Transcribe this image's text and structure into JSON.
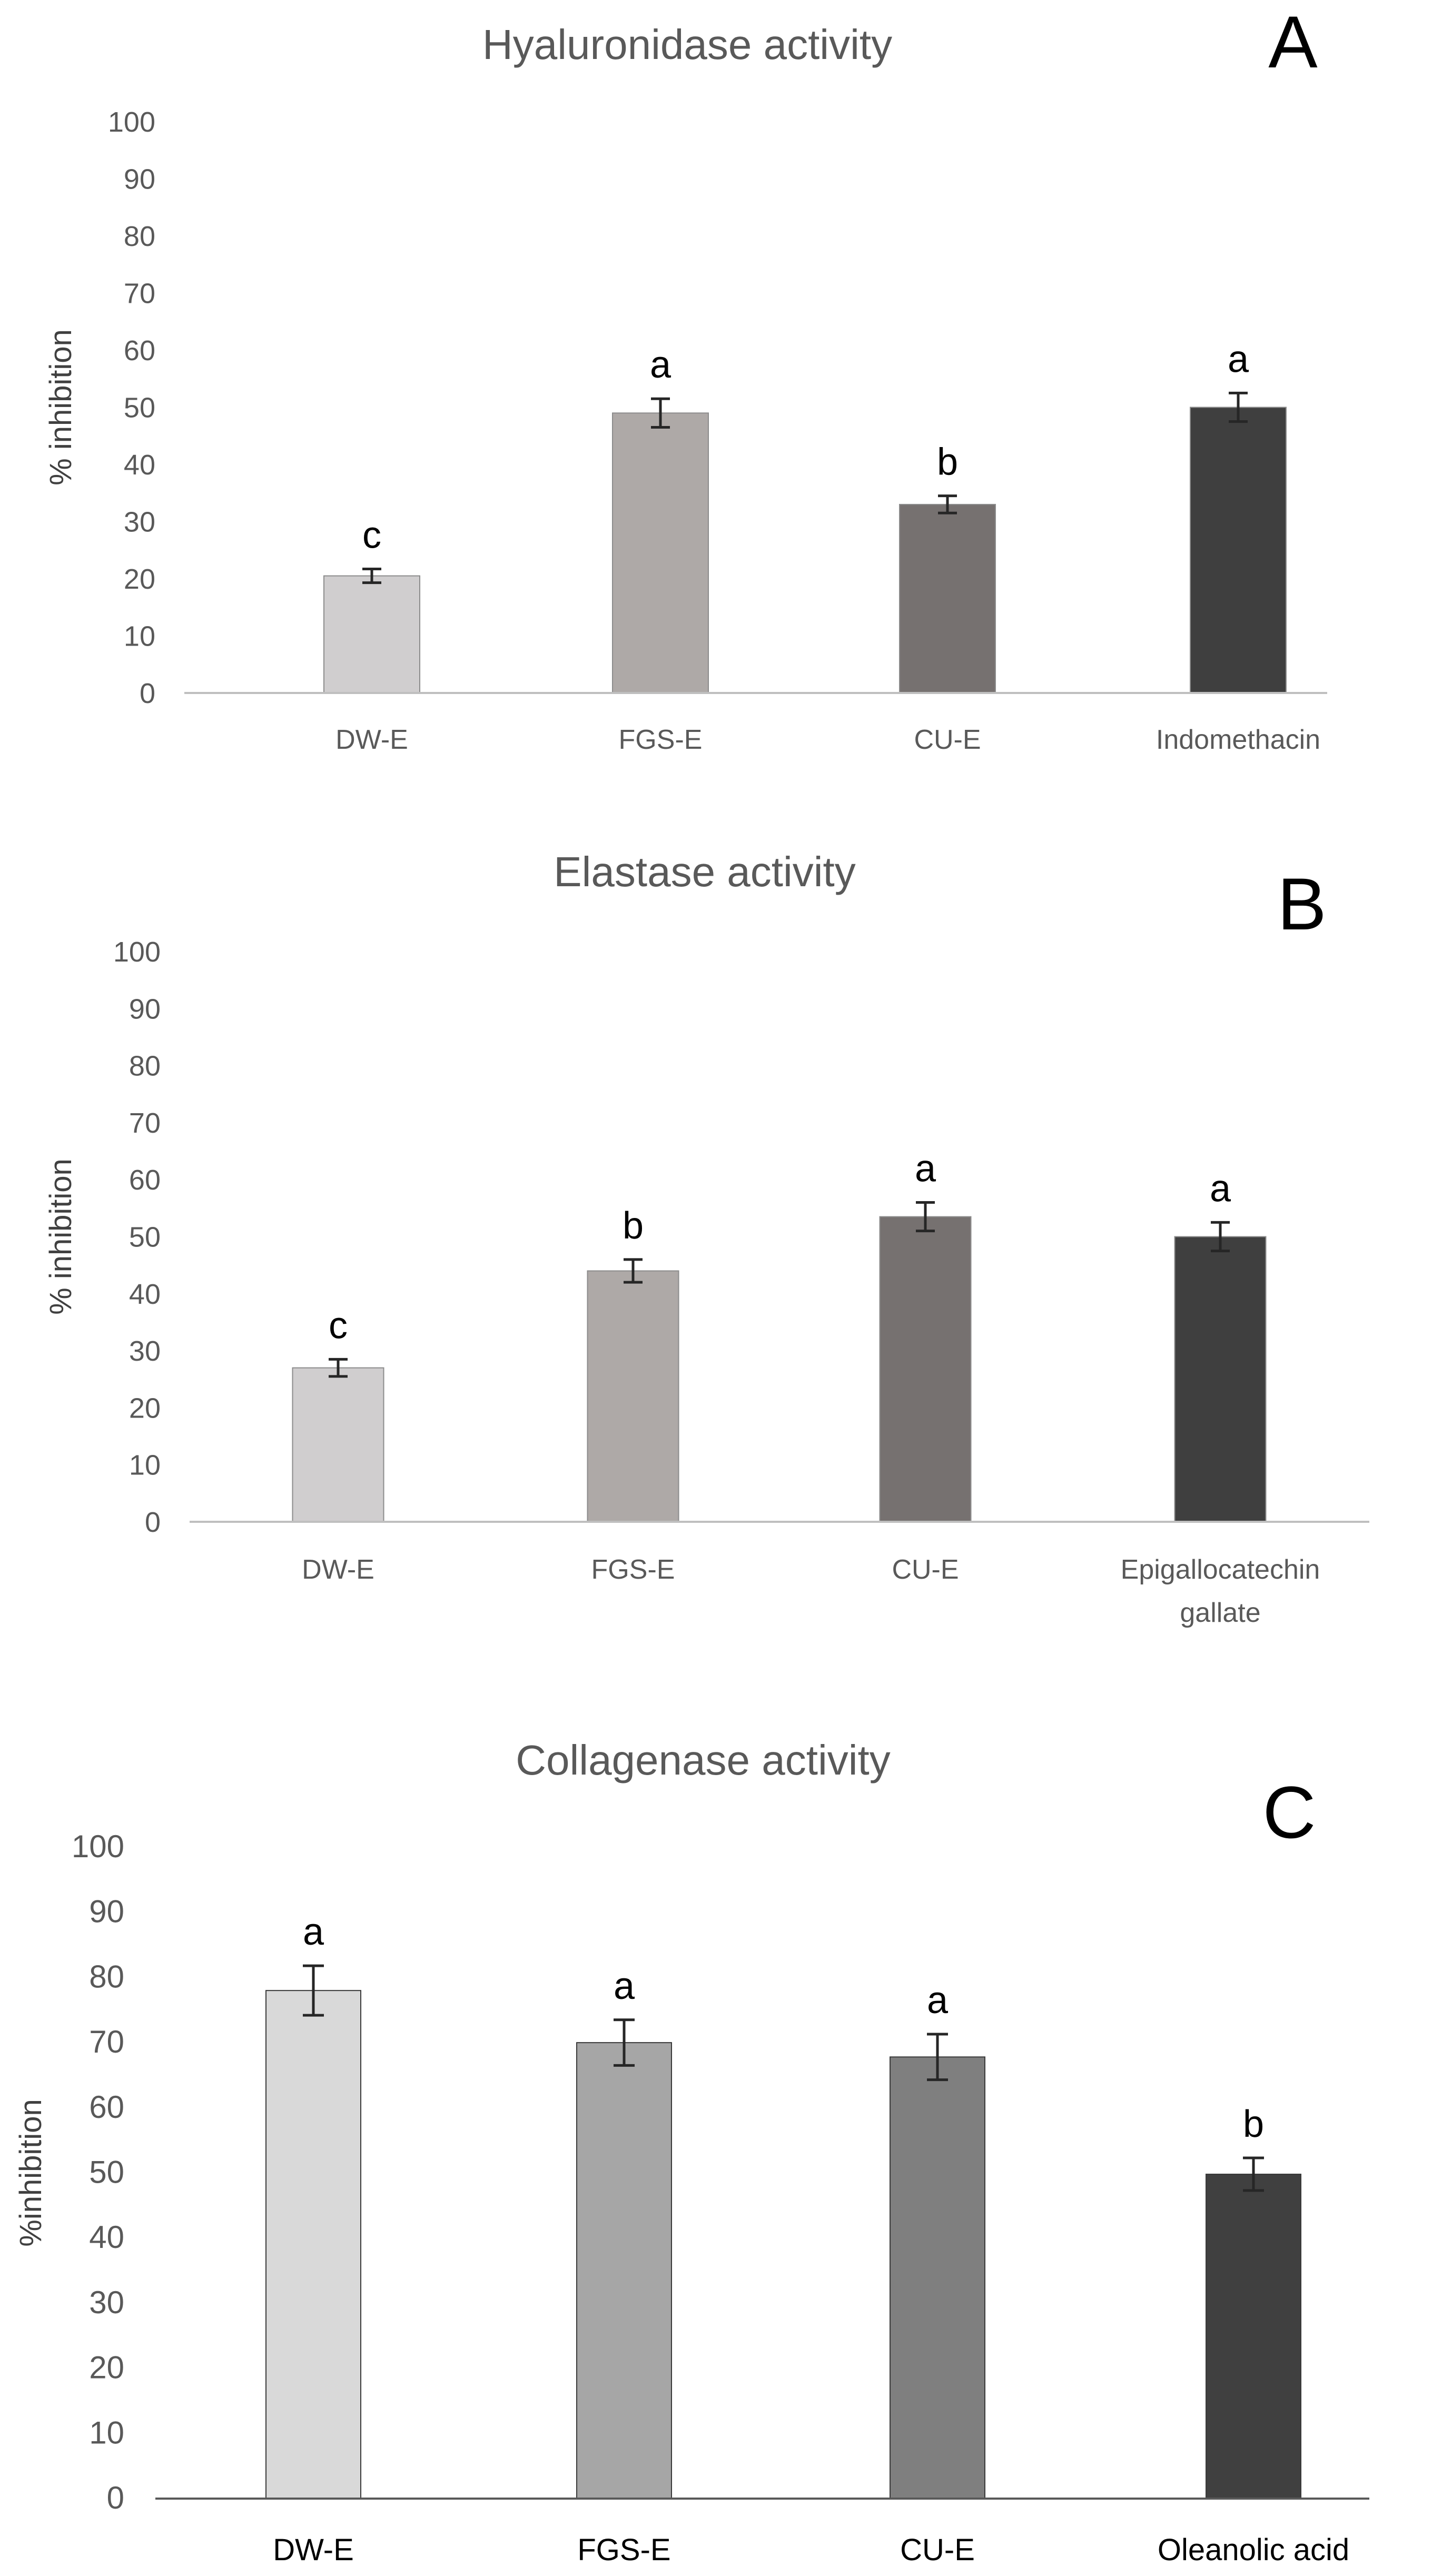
{
  "chart_data": [
    {
      "panel": "A",
      "type": "bar",
      "title": "Hyaluronidase activity",
      "ylabel": "% inhibition",
      "xlabel": "",
      "ylim": [
        0,
        100
      ],
      "yticks": [
        "0",
        "10",
        "20",
        "30",
        "40",
        "50",
        "60",
        "70",
        "80",
        "90",
        "100"
      ],
      "categories": [
        "DW-E",
        "FGS-E",
        "CU-E",
        "Indomethacin"
      ],
      "values": [
        20.5,
        49,
        33,
        50
      ],
      "errors": [
        1.2,
        2.5,
        1.5,
        2.5
      ],
      "significance": [
        "c",
        "a",
        "b",
        "a"
      ],
      "colors": [
        "#d0cecf",
        "#aea9a7",
        "#767170",
        "#3f3f3f"
      ]
    },
    {
      "panel": "B",
      "type": "bar",
      "title": "Elastase activity",
      "ylabel": "% inhibition",
      "xlabel": "",
      "ylim": [
        0,
        100
      ],
      "yticks": [
        "0",
        "10",
        "20",
        "30",
        "40",
        "50",
        "60",
        "70",
        "80",
        "90",
        "100"
      ],
      "categories": [
        [
          "DW-E"
        ],
        [
          "FGS-E"
        ],
        [
          "CU-E"
        ],
        [
          "Epigallocatechin",
          "gallate"
        ]
      ],
      "values": [
        27,
        44,
        53.5,
        50
      ],
      "errors": [
        1.5,
        2,
        2.5,
        2.5
      ],
      "significance": [
        "c",
        "b",
        "a",
        "a"
      ],
      "colors": [
        "#d0cecf",
        "#aea9a7",
        "#767170",
        "#3f3f3f"
      ]
    },
    {
      "panel": "C",
      "type": "bar",
      "title": "Collagenase activity",
      "ylabel": "%inhibition",
      "xlabel": "",
      "ylim": [
        0,
        100
      ],
      "yticks": [
        "0",
        "10",
        "20",
        "30",
        "40",
        "50",
        "60",
        "70",
        "80",
        "90",
        "100"
      ],
      "categories": [
        "DW-E",
        "FGS-E",
        "CU-E",
        "Oleanolic acid"
      ],
      "values": [
        78,
        70,
        67.8,
        49.8
      ],
      "errors": [
        3.8,
        3.5,
        3.5,
        2.5
      ],
      "significance": [
        "a",
        "a",
        "a",
        "b"
      ],
      "colors": [
        "#d9d9d9",
        "#a6a6a6",
        "#7f7f7f",
        "#404040"
      ]
    }
  ]
}
